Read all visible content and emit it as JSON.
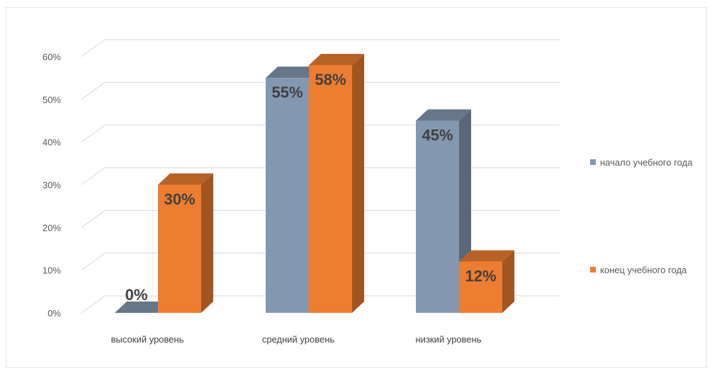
{
  "chart_data": {
    "type": "bar",
    "title": "",
    "xlabel": "",
    "ylabel": "",
    "categories": [
      "высокий уровень",
      "средний уровень",
      "низкий уровень"
    ],
    "series": [
      {
        "name": "начало учебного года",
        "values": [
          0,
          55,
          45
        ],
        "labels": [
          "0%",
          "55%",
          "45%"
        ],
        "color": "#8497b0"
      },
      {
        "name": "конец учебного года",
        "values": [
          30,
          58,
          12
        ],
        "labels": [
          "30%",
          "58%",
          "12%"
        ],
        "color": "#ed7d31"
      }
    ],
    "ylim": [
      0,
      60
    ],
    "yticks": [
      "0%",
      "10%",
      "20%",
      "30%",
      "40%",
      "50%",
      "60%"
    ],
    "grid": true,
    "style": "3d-clustered-column",
    "legend_position": "right"
  }
}
